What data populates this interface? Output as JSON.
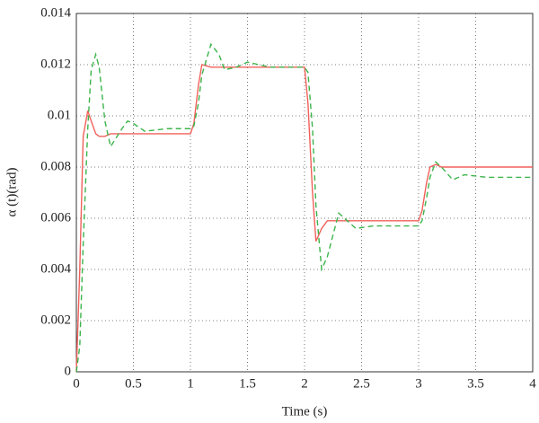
{
  "chart_data": {
    "type": "line",
    "x_label": "Time (s)",
    "y_label": "α (t)(rad)",
    "x": [
      0,
      0.03,
      0.06,
      0.1,
      0.13,
      0.17,
      0.2,
      0.25,
      0.3,
      0.4,
      0.45,
      0.5,
      0.6,
      0.8,
      1.0,
      1.03,
      1.07,
      1.1,
      1.18,
      1.25,
      1.3,
      1.4,
      1.5,
      1.7,
      2.0,
      2.03,
      2.07,
      2.1,
      2.15,
      2.2,
      2.3,
      2.45,
      2.6,
      3.0,
      3.03,
      3.07,
      3.1,
      3.15,
      3.2,
      3.3,
      3.4,
      3.6,
      4.0
    ],
    "series": [
      {
        "color": "#f0605a",
        "dash": "solid",
        "values": [
          0,
          0.004,
          0.0092,
          0.0102,
          0.0098,
          0.0093,
          0.0092,
          0.0092,
          0.0093,
          0.0093,
          0.0093,
          0.0093,
          0.0093,
          0.0093,
          0.0093,
          0.0097,
          0.0112,
          0.012,
          0.0119,
          0.0119,
          0.0119,
          0.0119,
          0.0119,
          0.0119,
          0.0119,
          0.0105,
          0.007,
          0.0051,
          0.0056,
          0.0059,
          0.0059,
          0.0059,
          0.0059,
          0.0059,
          0.0063,
          0.0074,
          0.008,
          0.0081,
          0.008,
          0.008,
          0.008,
          0.008,
          0.008
        ]
      },
      {
        "color": "#3cb44b",
        "dash": "dashed",
        "values": [
          0,
          0.001,
          0.005,
          0.0095,
          0.0118,
          0.0124,
          0.0119,
          0.0098,
          0.0088,
          0.0095,
          0.0098,
          0.0097,
          0.0094,
          0.0095,
          0.0095,
          0.0096,
          0.0105,
          0.0116,
          0.0128,
          0.0124,
          0.0118,
          0.0119,
          0.0121,
          0.0119,
          0.0119,
          0.0117,
          0.0095,
          0.0065,
          0.004,
          0.0045,
          0.0062,
          0.0056,
          0.0057,
          0.0057,
          0.0059,
          0.0068,
          0.0076,
          0.0082,
          0.008,
          0.0075,
          0.0077,
          0.0076,
          0.0076
        ]
      }
    ],
    "xlim": [
      0,
      4
    ],
    "xticks": [
      0,
      0.5,
      1,
      1.5,
      2,
      2.5,
      3,
      3.5,
      4
    ],
    "ylim": [
      0,
      0.014
    ],
    "yticks": [
      0,
      0.002,
      0.004,
      0.006,
      0.008,
      0.01,
      0.012,
      0.014
    ],
    "grid": true
  }
}
